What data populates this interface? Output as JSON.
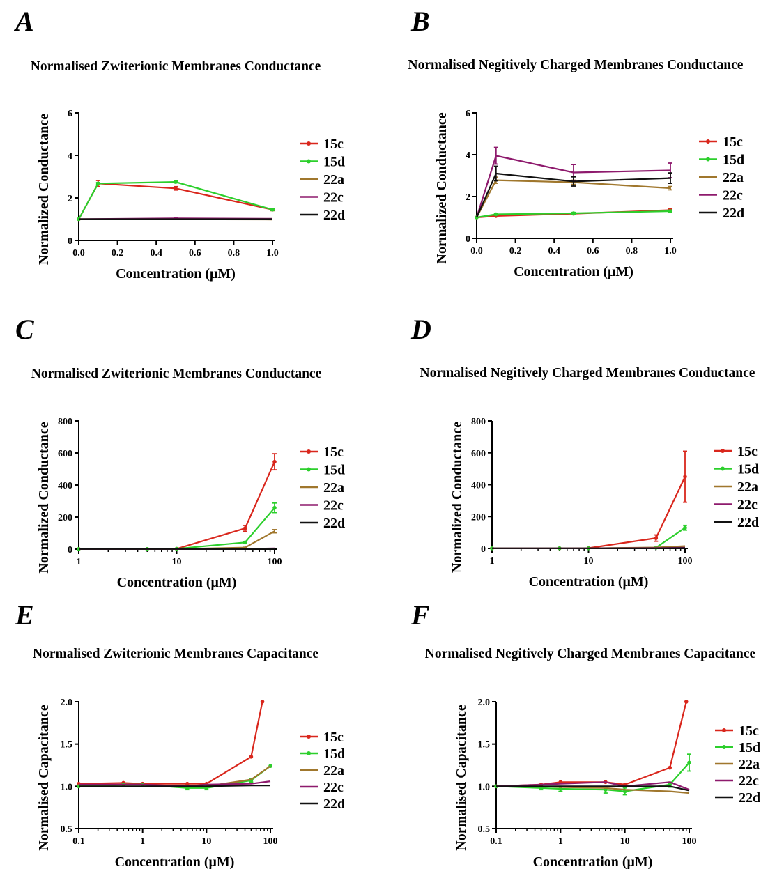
{
  "colors": {
    "15c": "#d9261c",
    "15d": "#2ccf2c",
    "22a": "#a0772d",
    "22c": "#8e1a6d",
    "22d": "#111111"
  },
  "chart_data": [
    {
      "panel": "A",
      "type": "line",
      "title": "Normalised Zwiterionic Membranes Conductance",
      "xlabel": "Concentration (μM)",
      "ylabel": "Normalized Conductance",
      "xscale": "linear",
      "xlim": [
        0,
        1
      ],
      "ylim": [
        0,
        6
      ],
      "xticks": [
        "0.0",
        "0.2",
        "0.4",
        "0.6",
        "0.8",
        "1.0"
      ],
      "yticks": [
        "0",
        "2",
        "4",
        "6"
      ],
      "legend": "right",
      "series": [
        {
          "name": "15c",
          "x": [
            0,
            0.1,
            0.5,
            1
          ],
          "y": [
            1,
            2.68,
            2.45,
            1.45
          ],
          "err": [
            0,
            0.14,
            0.08,
            0.05
          ]
        },
        {
          "name": "15d",
          "x": [
            0,
            0.1,
            0.5,
            1
          ],
          "y": [
            1,
            2.68,
            2.75,
            1.45
          ],
          "err": [
            0,
            0.04,
            0.04,
            0.04
          ]
        },
        {
          "name": "22a",
          "x": [
            0,
            0.1,
            0.5,
            1
          ],
          "y": [
            1,
            1.0,
            0.99,
            0.98
          ],
          "err": [
            0,
            0,
            0,
            0
          ]
        },
        {
          "name": "22c",
          "x": [
            0,
            0.1,
            0.5,
            1
          ],
          "y": [
            1,
            1.01,
            1.04,
            1.02
          ],
          "err": [
            0,
            0,
            0.03,
            0
          ]
        },
        {
          "name": "22d",
          "x": [
            0,
            0.1,
            0.5,
            1
          ],
          "y": [
            1,
            1.0,
            1.0,
            1.0
          ],
          "err": [
            0,
            0,
            0,
            0
          ]
        }
      ]
    },
    {
      "panel": "B",
      "type": "line",
      "title": "Normalised Negitively Charged Membranes Conductance",
      "xlabel": "Concentration (μM)",
      "ylabel": "Normalized Conductance",
      "xscale": "linear",
      "xlim": [
        0,
        1
      ],
      "ylim": [
        0,
        6
      ],
      "xticks": [
        "0.0",
        "0.2",
        "0.4",
        "0.6",
        "0.8",
        "1.0"
      ],
      "yticks": [
        "0",
        "2",
        "4",
        "6"
      ],
      "legend": "right",
      "series": [
        {
          "name": "15c",
          "x": [
            0,
            0.1,
            0.5,
            1
          ],
          "y": [
            1,
            1.07,
            1.18,
            1.35
          ],
          "err": [
            0,
            0.03,
            0.04,
            0.06
          ]
        },
        {
          "name": "15d",
          "x": [
            0,
            0.1,
            0.5,
            1
          ],
          "y": [
            1,
            1.15,
            1.2,
            1.3
          ],
          "err": [
            0,
            0.04,
            0.04,
            0.05
          ]
        },
        {
          "name": "22a",
          "x": [
            0,
            0.1,
            0.5,
            1
          ],
          "y": [
            1,
            2.78,
            2.68,
            2.4
          ],
          "err": [
            0,
            0.15,
            0.1,
            0.08
          ]
        },
        {
          "name": "22c",
          "x": [
            0,
            0.1,
            0.5,
            1
          ],
          "y": [
            1,
            3.95,
            3.15,
            3.25
          ],
          "err": [
            0,
            0.4,
            0.38,
            0.35
          ]
        },
        {
          "name": "22d",
          "x": [
            0,
            0.1,
            0.5,
            1
          ],
          "y": [
            1,
            3.1,
            2.72,
            2.88
          ],
          "err": [
            0,
            0.35,
            0.22,
            0.25
          ]
        }
      ]
    },
    {
      "panel": "C",
      "type": "line",
      "title": "Normalised Zwiterionic Membranes Conductance",
      "xlabel": "Concentration (μM)",
      "ylabel": "Normalized Conductance",
      "xscale": "log",
      "xlim": [
        1,
        100
      ],
      "ylim": [
        0,
        800
      ],
      "xticks": [
        "1",
        "10",
        "100"
      ],
      "yticks": [
        "0",
        "200",
        "400",
        "600",
        "800"
      ],
      "legend": "right",
      "series": [
        {
          "name": "15c",
          "x": [
            1,
            5,
            10,
            50,
            100
          ],
          "y": [
            1,
            1,
            2,
            130,
            545
          ],
          "err": [
            0,
            0,
            0,
            18,
            50
          ]
        },
        {
          "name": "15d",
          "x": [
            1,
            5,
            10,
            50,
            100
          ],
          "y": [
            1,
            1,
            2,
            42,
            258
          ],
          "err": [
            0,
            0,
            0,
            5,
            30
          ]
        },
        {
          "name": "22a",
          "x": [
            1,
            5,
            10,
            50,
            100
          ],
          "y": [
            1,
            1,
            1,
            10,
            112
          ],
          "err": [
            0,
            0,
            0,
            2,
            10
          ]
        },
        {
          "name": "22c",
          "x": [
            1,
            5,
            10,
            50,
            100
          ],
          "y": [
            1,
            1,
            1,
            2,
            5
          ],
          "err": [
            0,
            0,
            0,
            0,
            0
          ]
        },
        {
          "name": "22d",
          "x": [
            1,
            5,
            10,
            50,
            100
          ],
          "y": [
            1,
            1,
            1,
            1,
            2
          ],
          "err": [
            0,
            0,
            0,
            0,
            0
          ]
        }
      ]
    },
    {
      "panel": "D",
      "type": "line",
      "title": "Normalised Negitively Charged Membranes Conductance",
      "xlabel": "Concentration (μM)",
      "ylabel": "Normalized Conductance",
      "xscale": "log",
      "xlim": [
        1,
        100
      ],
      "ylim": [
        0,
        800
      ],
      "xticks": [
        "1",
        "10",
        "100"
      ],
      "yticks": [
        "0",
        "200",
        "400",
        "600",
        "800"
      ],
      "legend": "right",
      "series": [
        {
          "name": "15c",
          "x": [
            1,
            5,
            10,
            50,
            100
          ],
          "y": [
            1,
            1,
            2,
            65,
            450
          ],
          "err": [
            0,
            0,
            0,
            20,
            160
          ]
        },
        {
          "name": "15d",
          "x": [
            1,
            5,
            10,
            50,
            100
          ],
          "y": [
            1,
            1,
            1,
            5,
            130
          ],
          "err": [
            0,
            0,
            0,
            0,
            15
          ]
        },
        {
          "name": "22a",
          "x": [
            1,
            5,
            10,
            50,
            100
          ],
          "y": [
            1,
            1,
            1,
            6,
            15
          ],
          "err": [
            0,
            0,
            0,
            0,
            0
          ]
        },
        {
          "name": "22c",
          "x": [
            1,
            5,
            10,
            50,
            100
          ],
          "y": [
            1,
            1,
            1,
            2,
            5
          ],
          "err": [
            0,
            0,
            0,
            0,
            0
          ]
        },
        {
          "name": "22d",
          "x": [
            1,
            5,
            10,
            50,
            100
          ],
          "y": [
            1,
            1,
            1,
            1,
            2
          ],
          "err": [
            0,
            0,
            0,
            0,
            0
          ]
        }
      ]
    },
    {
      "panel": "E",
      "type": "line",
      "title": "Normalised Zwiterionic Membranes Capacitance",
      "xlabel": "Concentration (μM)",
      "ylabel": "Normalised Capacitance",
      "xscale": "log",
      "xlim": [
        0.1,
        100
      ],
      "ylim": [
        0.5,
        2.0
      ],
      "xticks": [
        "0.1",
        "1",
        "10",
        "100"
      ],
      "yticks": [
        "0.5",
        "1.0",
        "1.5",
        "2.0"
      ],
      "legend": "right",
      "series": [
        {
          "name": "15c",
          "x": [
            0.1,
            0.5,
            1,
            5,
            10,
            50,
            75
          ],
          "y": [
            1.03,
            1.04,
            1.03,
            1.03,
            1.03,
            1.35,
            2.0
          ],
          "err": [
            0,
            0,
            0,
            0,
            0,
            0,
            0
          ]
        },
        {
          "name": "15d",
          "x": [
            0.1,
            0.5,
            1,
            5,
            10,
            50,
            100
          ],
          "y": [
            1.0,
            1.02,
            1.02,
            0.98,
            0.98,
            1.07,
            1.24
          ],
          "err": [
            0,
            0,
            0,
            0.02,
            0.02,
            0.02,
            0
          ]
        },
        {
          "name": "22a",
          "x": [
            0.1,
            0.5,
            1,
            5,
            10,
            50,
            100
          ],
          "y": [
            1.0,
            1.0,
            1.0,
            1.0,
            1.0,
            1.08,
            1.24
          ],
          "err": [
            0,
            0,
            0,
            0,
            0,
            0,
            0
          ]
        },
        {
          "name": "22c",
          "x": [
            0.1,
            0.5,
            1,
            5,
            10,
            50,
            100
          ],
          "y": [
            1.02,
            1.02,
            1.02,
            1.0,
            1.02,
            1.03,
            1.06
          ],
          "err": [
            0,
            0,
            0,
            0,
            0,
            0,
            0
          ]
        },
        {
          "name": "22d",
          "x": [
            0.1,
            0.5,
            1,
            5,
            10,
            50,
            100
          ],
          "y": [
            1.0,
            1.0,
            1.0,
            1.0,
            1.0,
            1.01,
            1.01
          ],
          "err": [
            0,
            0,
            0,
            0,
            0,
            0,
            0
          ]
        }
      ]
    },
    {
      "panel": "F",
      "type": "line",
      "title": "Normalised Negitively Charged Membranes Capacitance",
      "xlabel": "Concentration (μM)",
      "ylabel": "Normalised Capacitance",
      "xscale": "log",
      "xlim": [
        0.1,
        100
      ],
      "ylim": [
        0.5,
        2.0
      ],
      "xticks": [
        "0.1",
        "1",
        "10",
        "100"
      ],
      "yticks": [
        "0.5",
        "1.0",
        "1.5",
        "2.0"
      ],
      "legend": "right",
      "series": [
        {
          "name": "15c",
          "x": [
            0.1,
            0.5,
            1,
            5,
            10,
            50,
            90
          ],
          "y": [
            1.0,
            1.02,
            1.05,
            1.05,
            1.02,
            1.22,
            2.0
          ],
          "err": [
            0,
            0,
            0,
            0,
            0,
            0,
            0
          ]
        },
        {
          "name": "15d",
          "x": [
            0.1,
            0.5,
            1,
            5,
            10,
            50,
            100
          ],
          "y": [
            1.0,
            0.98,
            0.97,
            0.96,
            0.94,
            1.02,
            1.28
          ],
          "err": [
            0,
            0.02,
            0.03,
            0.04,
            0.04,
            0.03,
            0.1
          ]
        },
        {
          "name": "22a",
          "x": [
            0.1,
            0.5,
            1,
            5,
            10,
            50,
            100
          ],
          "y": [
            1.0,
            1.0,
            0.99,
            0.98,
            0.96,
            0.94,
            0.92
          ],
          "err": [
            0,
            0,
            0,
            0,
            0,
            0,
            0
          ]
        },
        {
          "name": "22c",
          "x": [
            0.1,
            0.5,
            1,
            5,
            10,
            50,
            100
          ],
          "y": [
            1.0,
            1.02,
            1.03,
            1.05,
            1.0,
            1.05,
            0.96
          ],
          "err": [
            0,
            0,
            0,
            0,
            0,
            0,
            0
          ]
        },
        {
          "name": "22d",
          "x": [
            0.1,
            0.5,
            1,
            5,
            10,
            50,
            100
          ],
          "y": [
            1.0,
            1.0,
            1.0,
            1.0,
            1.0,
            1.0,
            0.95
          ],
          "err": [
            0,
            0,
            0,
            0,
            0,
            0,
            0
          ]
        }
      ]
    }
  ]
}
